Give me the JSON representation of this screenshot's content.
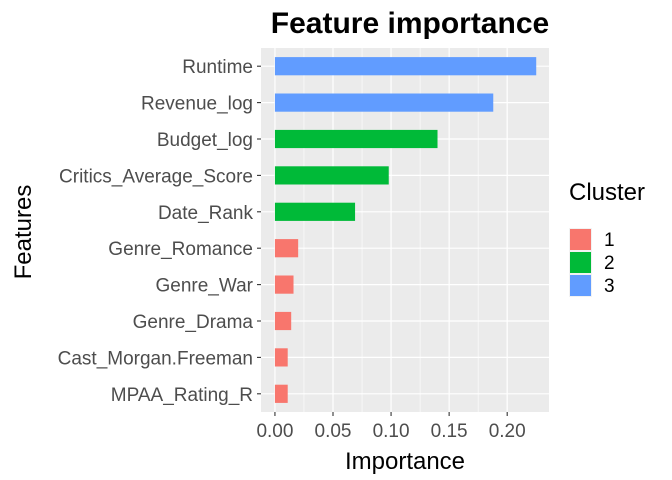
{
  "chart_data": {
    "type": "bar",
    "orientation": "horizontal",
    "title": "Feature importance",
    "xlabel": "Importance",
    "ylabel": "Features",
    "xlim": [
      -0.012,
      0.236
    ],
    "x_ticks": [
      0.0,
      0.05,
      0.1,
      0.15,
      0.2
    ],
    "x_tick_labels": [
      "0.00",
      "0.05",
      "0.10",
      "0.15",
      "0.20"
    ],
    "grid": true,
    "legend": {
      "title": "Cluster",
      "position": "right",
      "entries": [
        {
          "label": "1",
          "color": "#F8766D"
        },
        {
          "label": "2",
          "color": "#00BA38"
        },
        {
          "label": "3",
          "color": "#619CFF"
        }
      ]
    },
    "bars": [
      {
        "feature": "Runtime",
        "value": 0.225,
        "cluster": "3"
      },
      {
        "feature": "Revenue_log",
        "value": 0.188,
        "cluster": "3"
      },
      {
        "feature": "Budget_log",
        "value": 0.14,
        "cluster": "2"
      },
      {
        "feature": "Critics_Average_Score",
        "value": 0.098,
        "cluster": "2"
      },
      {
        "feature": "Date_Rank",
        "value": 0.069,
        "cluster": "2"
      },
      {
        "feature": "Genre_Romance",
        "value": 0.02,
        "cluster": "1"
      },
      {
        "feature": "Genre_War",
        "value": 0.016,
        "cluster": "1"
      },
      {
        "feature": "Genre_Drama",
        "value": 0.014,
        "cluster": "1"
      },
      {
        "feature": "Cast_Morgan.Freeman",
        "value": 0.011,
        "cluster": "1"
      },
      {
        "feature": "MPAA_Rating_R",
        "value": 0.011,
        "cluster": "1"
      }
    ]
  }
}
